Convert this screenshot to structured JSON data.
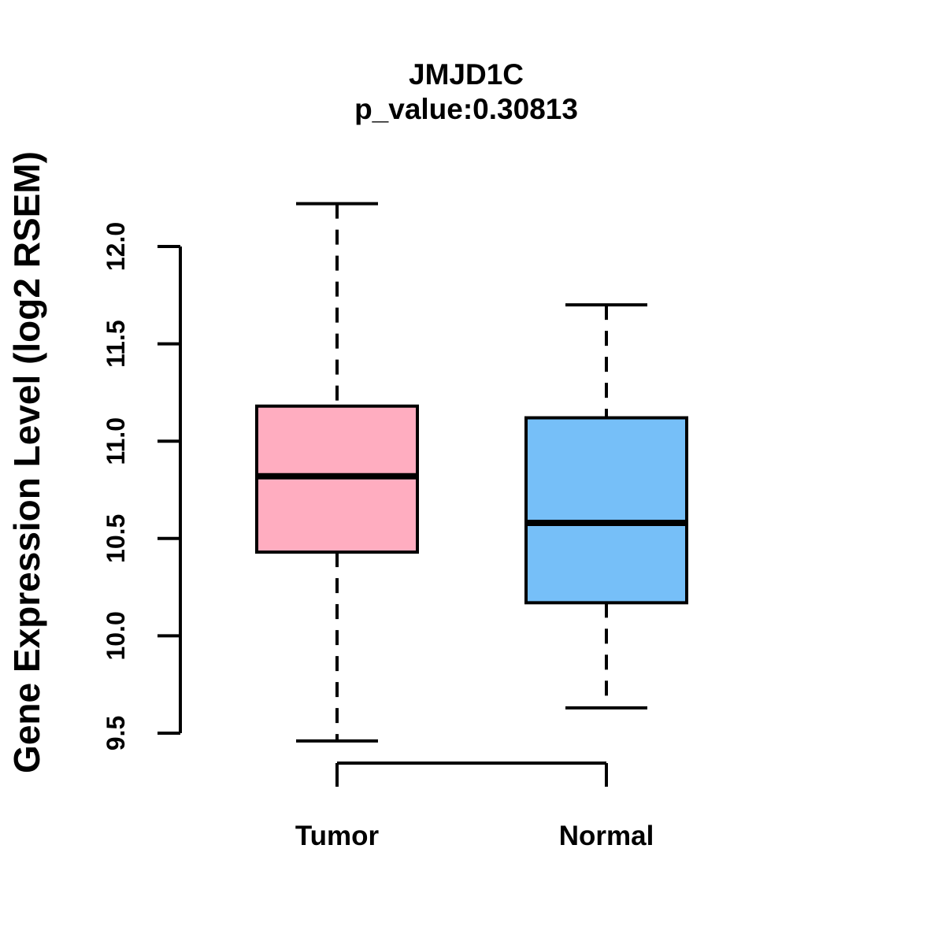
{
  "chart_data": {
    "type": "boxplot",
    "title": "JMJD1C",
    "subtitle": "p_value:0.30813",
    "ylabel": "Gene Expression Level (log2 RSEM)",
    "ylim": [
      9.5,
      12.0
    ],
    "yticks": [
      "9.5",
      "10.0",
      "10.5",
      "11.0",
      "11.5",
      "12.0"
    ],
    "grid": false,
    "legend": "none",
    "categories": [
      "Tumor",
      "Normal"
    ],
    "groups": [
      {
        "name": "Tumor",
        "fill_color": "#FFADC0",
        "whisker_low": 9.46,
        "q1": 10.43,
        "median": 10.82,
        "q3": 11.18,
        "whisker_high": 12.22
      },
      {
        "name": "Normal",
        "fill_color": "#76BFF8",
        "whisker_low": 9.63,
        "q1": 10.17,
        "median": 10.58,
        "q3": 11.12,
        "whisker_high": 11.7
      }
    ],
    "colors": {
      "box_border": "#000000",
      "median": "#000000",
      "axis": "#000000",
      "background": "#FFFFFF"
    }
  }
}
